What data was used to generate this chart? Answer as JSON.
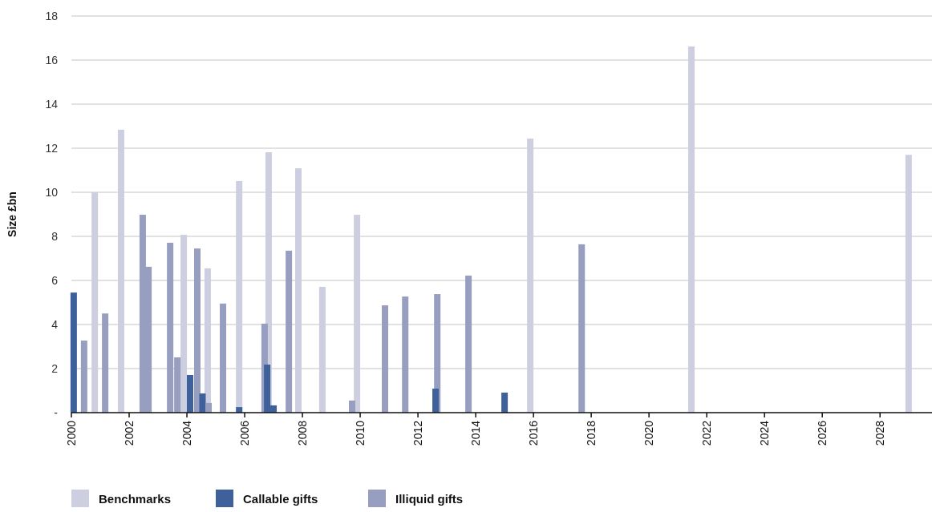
{
  "chart_data": {
    "type": "bar",
    "ylabel": "Size £bn",
    "xlim": [
      2000,
      2029.8
    ],
    "xticks": [
      2000,
      2002,
      2004,
      2006,
      2008,
      2010,
      2012,
      2014,
      2016,
      2018,
      2020,
      2022,
      2024,
      2026,
      2028
    ],
    "ylim": [
      0,
      18
    ],
    "yticks": [
      {
        "value": 0,
        "label": "-"
      },
      2,
      4,
      6,
      8,
      10,
      12,
      14,
      16,
      18
    ],
    "grid": "y",
    "legend": "bottom left",
    "series": [
      {
        "name": "Benchmarks",
        "color": "#cdcfe1",
        "x": [
          2000.81,
          2001.72,
          2003.89,
          2004.72,
          2005.81,
          2006.83,
          2007.86,
          2008.69,
          2009.89,
          2015.89,
          2021.47,
          2028.99
        ],
        "values": [
          10.0,
          12.84,
          8.07,
          6.55,
          10.51,
          11.82,
          11.09,
          5.71,
          8.98,
          12.44,
          16.62,
          11.7
        ]
      },
      {
        "name": "Callable gifts",
        "color": "#3e619b",
        "x": [
          2000.08,
          2004.11,
          2004.54,
          2005.81,
          2006.78,
          2007.0,
          2012.61,
          2015.0
        ],
        "values": [
          5.45,
          1.71,
          0.87,
          0.25,
          2.18,
          0.33,
          1.09,
          0.91
        ]
      },
      {
        "name": "Illiquid gifts",
        "color": "#979ebf",
        "x": [
          2000.44,
          2001.17,
          2002.47,
          2002.67,
          2003.42,
          2003.67,
          2004.36,
          2004.75,
          2005.25,
          2006.69,
          2007.53,
          2009.72,
          2010.86,
          2011.56,
          2012.67,
          2013.75,
          2017.67
        ],
        "values": [
          3.27,
          4.5,
          8.98,
          6.62,
          7.71,
          2.51,
          7.45,
          0.44,
          4.95,
          4.04,
          7.35,
          0.55,
          4.87,
          5.27,
          5.38,
          6.22,
          7.64
        ]
      }
    ]
  }
}
